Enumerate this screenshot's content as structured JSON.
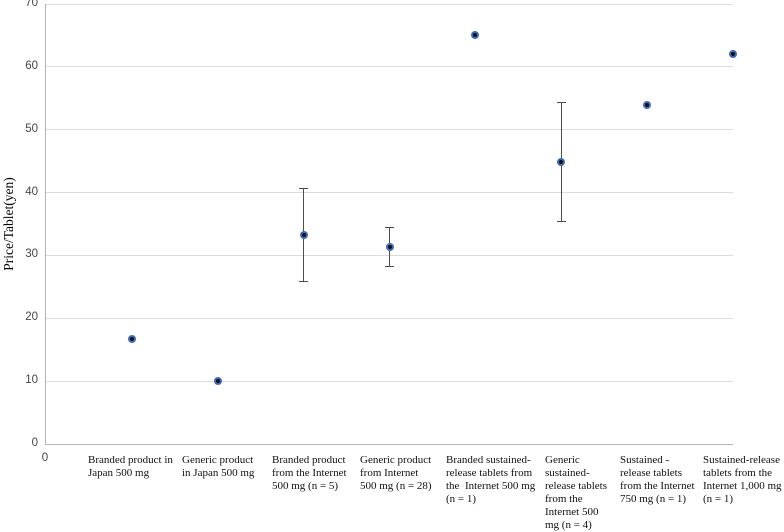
{
  "chart_data": {
    "type": "scatter",
    "title": "",
    "ylabel": "Price/Tablet(yen)",
    "xlabel": "",
    "ylim": [
      0,
      70
    ],
    "xlim": [
      0,
      8
    ],
    "yticks": [
      0,
      10,
      20,
      30,
      40,
      50,
      60,
      70
    ],
    "x_origin_tick_label": "0",
    "grid": true,
    "legend": "none",
    "categories": [
      "Branded product in\nJapan 500 mg",
      "Generic product\nin Japan 500 mg",
      "Branded product\nfrom the Internet\n500 mg (n = 5)",
      "Generic product\nfrom Internet\n500 mg (n = 28)",
      "Branded sustained-\nrelease tablets from\nthe  Internet 500 mg\n(n = 1)",
      "Generic\nsustained-\nrelease tablets\nfrom the\nInternet 500\nmg (n = 4)",
      "Sustained -\nrelease tablets\nfrom the Internet\n750 mg (n = 1)",
      "Sustained-release\ntablets from the\nInternet 1,000 mg\n(n = 1)"
    ],
    "x": [
      1,
      2,
      3,
      4,
      5,
      6,
      7,
      8
    ],
    "values": [
      16.7,
      10,
      33.3,
      31.3,
      65,
      44.8,
      54,
      62
    ],
    "error_low": [
      null,
      null,
      25.9,
      28.2,
      null,
      35.4,
      null,
      null
    ],
    "error_high": [
      null,
      null,
      40.7,
      34.4,
      null,
      54.3,
      null,
      null
    ],
    "colors": {
      "marker_fill": "#0b1020",
      "marker_border": "#3f6db3",
      "error_bar": "#4d4d4d",
      "gridline": "#dcdcdc",
      "axis_line": "#b3b3b3",
      "tick_text": "#454545",
      "label_text": "#111111"
    }
  }
}
